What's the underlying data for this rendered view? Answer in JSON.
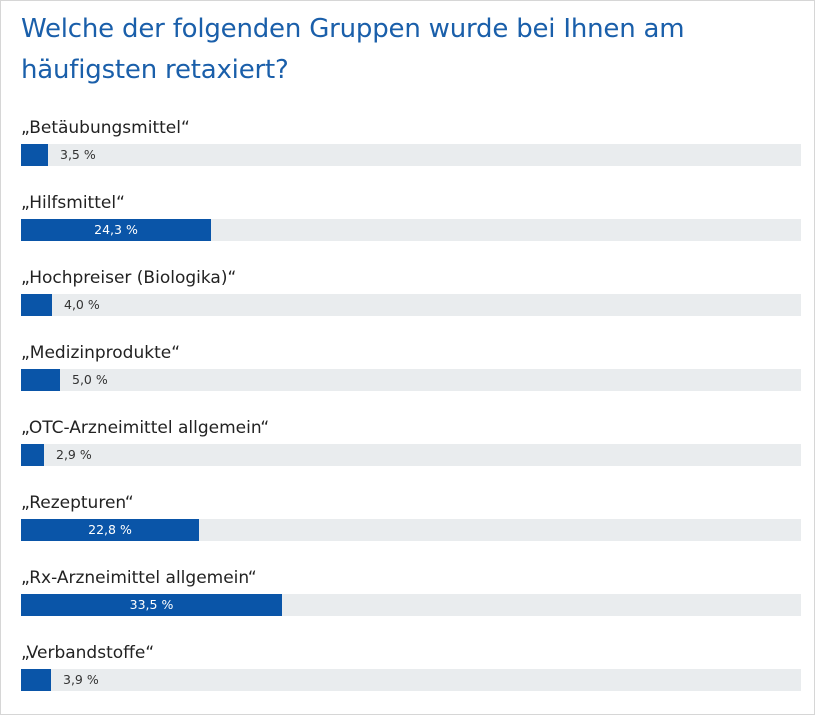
{
  "poll": {
    "title": "Welche der folgenden Gruppen wurde bei Ihnen am häufigsten retaxiert?"
  },
  "colors": {
    "title": "#1a5faa",
    "bar_fill": "#0a55a8",
    "bar_track": "#e9ecee",
    "label_text": "#222222"
  },
  "chart_data": {
    "type": "bar",
    "orientation": "horizontal",
    "title": "Welche der folgenden Gruppen wurde bei Ihnen am häufigsten retaxiert?",
    "xlim": [
      0,
      100
    ],
    "unit": "%",
    "categories": [
      "„Betäubungsmittel“",
      "„Hilfsmittel“",
      "„Hochpreiser (Biologika)“",
      "„Medizinprodukte“",
      "„OTC-Arzneimittel allgemein“",
      "„Rezepturen“",
      "„Rx-Arzneimittel allgemein“",
      "„Verbandstoffe“"
    ],
    "values": [
      3.5,
      24.3,
      4.0,
      5.0,
      2.9,
      22.8,
      33.5,
      3.9
    ],
    "value_labels": [
      "3,5 %",
      "24,3 %",
      "4,0 %",
      "5,0 %",
      "2,9 %",
      "22,8 %",
      "33,5 %",
      "3,9 %"
    ]
  }
}
